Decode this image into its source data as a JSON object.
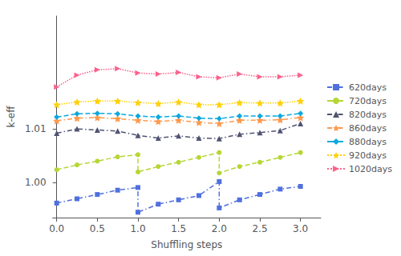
{
  "chart_data": {
    "type": "line",
    "xlabel": "Shuffling steps",
    "ylabel": "k-eff",
    "xlim": [
      -0.05,
      3.25
    ],
    "ylim": [
      0.9935,
      1.031
    ],
    "xticks": [
      {
        "value": 0.0,
        "label": "0.0"
      },
      0.5,
      {
        "value": 1.0,
        "label": "1.0"
      },
      1.5,
      {
        "value": 2.0,
        "label": "2.0"
      },
      2.5,
      {
        "value": 3.0,
        "label": "3.0"
      }
    ],
    "yticks": [
      {
        "value": 1.0,
        "label": "1.00"
      },
      1.01
    ],
    "grid": false,
    "legend": "right",
    "series": [
      {
        "name": "620days",
        "marker": "square",
        "line_style": "dashdot",
        "x": [
          0.0,
          0.25,
          0.5,
          0.75,
          1.0,
          1.0,
          1.25,
          1.5,
          1.75,
          2.0,
          2.0,
          2.25,
          2.5,
          2.75,
          3.0
        ],
        "values": [
          0.9962,
          0.997,
          0.9978,
          0.9986,
          0.9991,
          0.9945,
          0.996,
          0.9968,
          0.9976,
          1.0002,
          0.9953,
          0.9968,
          0.9978,
          0.9988,
          0.9993
        ]
      },
      {
        "name": "720days",
        "marker": "circle",
        "line_style": "dashed",
        "x": [
          0.0,
          0.25,
          0.5,
          0.75,
          1.0,
          1.0,
          1.25,
          1.5,
          1.75,
          2.0,
          2.0,
          2.25,
          2.5,
          2.75,
          3.0
        ],
        "values": [
          1.0024,
          1.0033,
          1.004,
          1.0048,
          1.0052,
          1.002,
          1.003,
          1.0038,
          1.0047,
          1.0056,
          1.0018,
          1.003,
          1.0038,
          1.0047,
          1.0056
        ]
      },
      {
        "name": "820days",
        "marker": "triangle-up",
        "line_style": "dashdot",
        "x": [
          0.0,
          0.25,
          0.5,
          0.75,
          1.0,
          1.25,
          1.5,
          1.75,
          2.0,
          2.25,
          2.5,
          2.75,
          3.0
        ],
        "values": [
          1.0092,
          1.01,
          1.0098,
          1.0096,
          1.0088,
          1.0083,
          1.0087,
          1.0083,
          1.0082,
          1.009,
          1.0093,
          1.0097,
          1.011
        ]
      },
      {
        "name": "860days",
        "marker": "star",
        "line_style": "dashdot",
        "x": [
          0.0,
          0.25,
          0.5,
          0.75,
          1.0,
          1.25,
          1.5,
          1.75,
          2.0,
          2.25,
          2.5,
          2.75,
          3.0
        ],
        "values": [
          1.0115,
          1.012,
          1.0121,
          1.0119,
          1.0116,
          1.0114,
          1.0116,
          1.0112,
          1.011,
          1.0116,
          1.0116,
          1.0117,
          1.0121
        ]
      },
      {
        "name": "880days",
        "marker": "diamond",
        "line_style": "dashed",
        "x": [
          0.0,
          0.25,
          0.5,
          0.75,
          1.0,
          1.25,
          1.5,
          1.75,
          2.0,
          2.25,
          2.5,
          2.75,
          3.0
        ],
        "values": [
          1.0122,
          1.0128,
          1.0129,
          1.0128,
          1.0124,
          1.0122,
          1.0124,
          1.012,
          1.0119,
          1.0124,
          1.0124,
          1.0124,
          1.0129
        ]
      },
      {
        "name": "920days",
        "marker": "star",
        "line_style": "dotted",
        "x": [
          0.0,
          0.25,
          0.5,
          0.75,
          1.0,
          1.25,
          1.5,
          1.75,
          2.0,
          2.25,
          2.5,
          2.75,
          3.0
        ],
        "values": [
          1.0145,
          1.015,
          1.0152,
          1.0152,
          1.0149,
          1.0147,
          1.015,
          1.0145,
          1.0145,
          1.0149,
          1.0148,
          1.0148,
          1.0152
        ]
      },
      {
        "name": "1020days",
        "marker": "triangle-right",
        "line_style": "dotted",
        "x": [
          0.0,
          0.25,
          0.5,
          0.75,
          1.0,
          1.25,
          1.5,
          1.75,
          2.0,
          2.25,
          2.5,
          2.75,
          3.0
        ],
        "values": [
          1.0178,
          1.02,
          1.021,
          1.0212,
          1.0204,
          1.0202,
          1.0205,
          1.0197,
          1.0195,
          1.0202,
          1.0197,
          1.0197,
          1.02
        ]
      }
    ]
  }
}
